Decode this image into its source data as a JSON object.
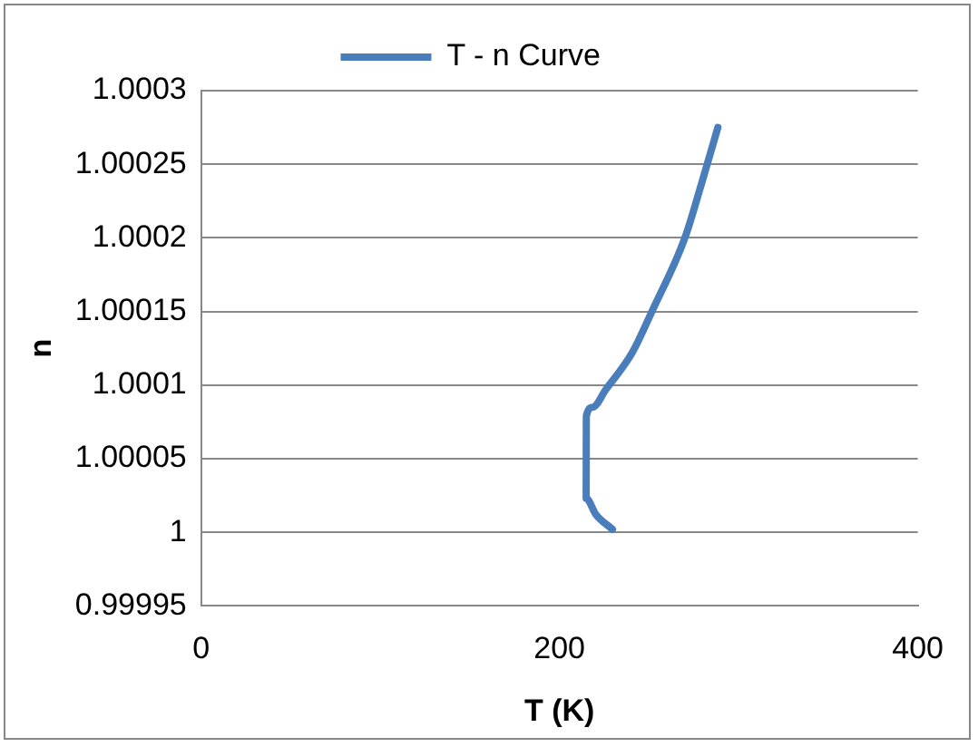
{
  "chart_data": {
    "type": "line",
    "xlabel": "T (K)",
    "ylabel": "n",
    "series": [
      {
        "name": "T - n Curve",
        "color": "#4a7ebb",
        "x": [
          229.6,
          220.4,
          214.9,
          215,
          218.5,
          225.9,
          240.6,
          251.6,
          270,
          279.1,
          288.4
        ],
        "values": [
          1.000002,
          1.000012,
          1.000023,
          1.000079,
          1.000085,
          1.000097,
          1.000122,
          1.00015,
          1.0002,
          1.000236,
          1.000275
        ]
      }
    ],
    "xlim": [
      0,
      400
    ],
    "xticks": [
      0,
      200,
      400
    ],
    "ylim": [
      0.99995,
      1.0003
    ],
    "yticks": [
      0.99995,
      1,
      1.00005,
      1.0001,
      1.00015,
      1.0002,
      1.00025,
      1.0003
    ],
    "grid": "y",
    "legend": "top",
    "marker": "none",
    "line_style": "solid"
  }
}
